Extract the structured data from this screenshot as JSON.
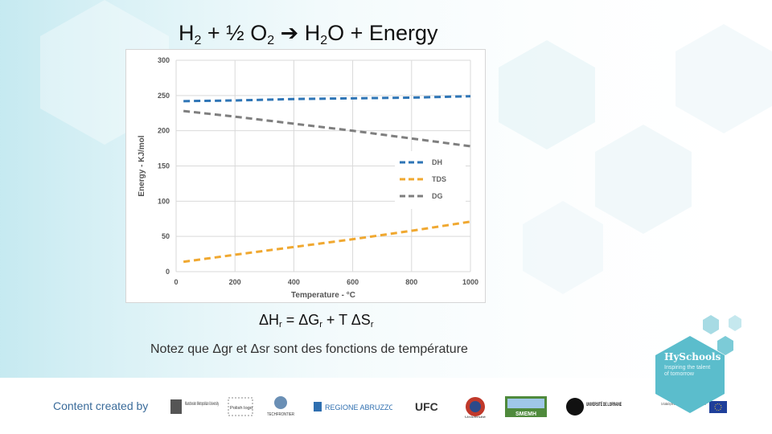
{
  "title": {
    "part1": "H",
    "sub1": "2",
    "part2": " + ½ O",
    "sub2": "2",
    "arrow": "➔",
    "part3": " H",
    "sub3": "2",
    "part4": "O + Energy"
  },
  "formula": {
    "d1": "ΔH",
    "s1": "r",
    "eq": " = ΔG",
    "s2": "r",
    "plus": " + T ΔS",
    "s3": "r"
  },
  "note": "Notez que Δgr et Δsr sont des fonctions de température",
  "footer": {
    "credit": "Content created by",
    "logos": [
      "Manchester Metropolitan University",
      "Polish logo",
      "TECHFRONTIER",
      "REGIONE ABRUZZO",
      "UFC",
      "Université",
      "SMEMH",
      "UNIVERSITÉ DE LORRAINE",
      "Co-funded by the Erasmus+ Programme of the European Union"
    ]
  },
  "badge": {
    "title": "HySchools",
    "subtitle": "Inspiring the talent of tomorrow"
  },
  "chart_data": {
    "type": "line",
    "title": "",
    "xlabel": "Temperature - °C",
    "ylabel": "Energy - KJ/mol",
    "xlim": [
      0,
      1000
    ],
    "ylim": [
      0,
      300
    ],
    "xticks": [
      0,
      200,
      400,
      600,
      800,
      1000
    ],
    "yticks": [
      0,
      50,
      100,
      150,
      200,
      250,
      300
    ],
    "grid": true,
    "legend_position": "middle-right",
    "x": [
      25,
      200,
      400,
      600,
      800,
      1000
    ],
    "series": [
      {
        "name": "DH",
        "color": "#2e75b6",
        "values": [
          242,
          243,
          245,
          246,
          247,
          249
        ]
      },
      {
        "name": "TDS",
        "color": "#f0a830",
        "values": [
          14,
          24,
          35,
          46,
          58,
          71
        ]
      },
      {
        "name": "DG",
        "color": "#7f7f7f",
        "values": [
          228,
          220,
          210,
          200,
          189,
          178
        ]
      }
    ]
  }
}
